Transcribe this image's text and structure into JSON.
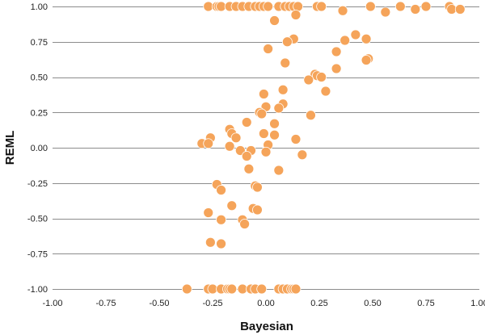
{
  "chart_data": {
    "type": "scatter",
    "xlabel": "Bayesian",
    "ylabel": "REML",
    "xlim": [
      -1.0,
      1.0
    ],
    "ylim": [
      -1.0,
      1.0
    ],
    "x_ticks": [
      "-1.00",
      "-0.75",
      "-0.50",
      "-0.25",
      "0.00",
      "0.25",
      "0.50",
      "0.75",
      "1.00"
    ],
    "y_ticks": [
      "1.00",
      "0.75",
      "0.50",
      "0.25",
      "0.00",
      "-0.25",
      "-0.50",
      "-0.75",
      "-1.00"
    ],
    "grid": "horizontal",
    "legend": "none",
    "marker_color": "#f5a45a",
    "points": [
      {
        "x": -0.27,
        "y": 1.0
      },
      {
        "x": -0.23,
        "y": 1.0
      },
      {
        "x": -0.22,
        "y": 1.0
      },
      {
        "x": -0.21,
        "y": 1.0
      },
      {
        "x": -0.17,
        "y": 1.0
      },
      {
        "x": -0.14,
        "y": 1.0
      },
      {
        "x": -0.11,
        "y": 1.0
      },
      {
        "x": -0.08,
        "y": 1.0
      },
      {
        "x": -0.05,
        "y": 1.0
      },
      {
        "x": -0.03,
        "y": 1.0
      },
      {
        "x": -0.01,
        "y": 1.0
      },
      {
        "x": 0.01,
        "y": 1.0
      },
      {
        "x": 0.06,
        "y": 1.0
      },
      {
        "x": 0.09,
        "y": 1.0
      },
      {
        "x": 0.11,
        "y": 1.0
      },
      {
        "x": 0.13,
        "y": 1.0
      },
      {
        "x": 0.15,
        "y": 1.0
      },
      {
        "x": 0.24,
        "y": 1.0
      },
      {
        "x": 0.26,
        "y": 1.0
      },
      {
        "x": 0.49,
        "y": 1.0
      },
      {
        "x": 0.63,
        "y": 1.0
      },
      {
        "x": 0.75,
        "y": 1.0
      },
      {
        "x": 0.86,
        "y": 1.0
      },
      {
        "x": 0.7,
        "y": 0.98
      },
      {
        "x": 0.87,
        "y": 0.98
      },
      {
        "x": 0.91,
        "y": 0.98
      },
      {
        "x": 0.36,
        "y": 0.97
      },
      {
        "x": 0.56,
        "y": 0.96
      },
      {
        "x": 0.14,
        "y": 0.94
      },
      {
        "x": 0.04,
        "y": 0.9
      },
      {
        "x": 0.42,
        "y": 0.8
      },
      {
        "x": 0.13,
        "y": 0.77
      },
      {
        "x": 0.47,
        "y": 0.77
      },
      {
        "x": 0.37,
        "y": 0.76
      },
      {
        "x": 0.1,
        "y": 0.75
      },
      {
        "x": 0.01,
        "y": 0.7
      },
      {
        "x": 0.33,
        "y": 0.68
      },
      {
        "x": 0.48,
        "y": 0.63
      },
      {
        "x": 0.47,
        "y": 0.62
      },
      {
        "x": 0.09,
        "y": 0.6
      },
      {
        "x": 0.33,
        "y": 0.56
      },
      {
        "x": 0.23,
        "y": 0.52
      },
      {
        "x": 0.24,
        "y": 0.51
      },
      {
        "x": 0.26,
        "y": 0.5
      },
      {
        "x": 0.2,
        "y": 0.48
      },
      {
        "x": 0.08,
        "y": 0.41
      },
      {
        "x": 0.28,
        "y": 0.4
      },
      {
        "x": -0.01,
        "y": 0.38
      },
      {
        "x": 0.08,
        "y": 0.31
      },
      {
        "x": 0.0,
        "y": 0.29
      },
      {
        "x": 0.06,
        "y": 0.28
      },
      {
        "x": -0.03,
        "y": 0.25
      },
      {
        "x": -0.02,
        "y": 0.24
      },
      {
        "x": 0.21,
        "y": 0.23
      },
      {
        "x": -0.09,
        "y": 0.18
      },
      {
        "x": 0.04,
        "y": 0.17
      },
      {
        "x": -0.17,
        "y": 0.13
      },
      {
        "x": -0.16,
        "y": 0.1
      },
      {
        "x": -0.01,
        "y": 0.1
      },
      {
        "x": 0.04,
        "y": 0.09
      },
      {
        "x": -0.26,
        "y": 0.07
      },
      {
        "x": -0.14,
        "y": 0.07
      },
      {
        "x": 0.14,
        "y": 0.06
      },
      {
        "x": -0.3,
        "y": 0.03
      },
      {
        "x": -0.27,
        "y": 0.03
      },
      {
        "x": 0.01,
        "y": 0.02
      },
      {
        "x": -0.17,
        "y": 0.01
      },
      {
        "x": -0.07,
        "y": -0.02
      },
      {
        "x": -0.12,
        "y": -0.02
      },
      {
        "x": 0.0,
        "y": -0.03
      },
      {
        "x": 0.17,
        "y": -0.05
      },
      {
        "x": -0.09,
        "y": -0.06
      },
      {
        "x": -0.08,
        "y": -0.15
      },
      {
        "x": 0.06,
        "y": -0.16
      },
      {
        "x": -0.23,
        "y": -0.26
      },
      {
        "x": -0.05,
        "y": -0.27
      },
      {
        "x": -0.04,
        "y": -0.28
      },
      {
        "x": -0.21,
        "y": -0.3
      },
      {
        "x": -0.16,
        "y": -0.41
      },
      {
        "x": -0.06,
        "y": -0.43
      },
      {
        "x": -0.04,
        "y": -0.44
      },
      {
        "x": -0.27,
        "y": -0.46
      },
      {
        "x": -0.11,
        "y": -0.51
      },
      {
        "x": -0.21,
        "y": -0.51
      },
      {
        "x": -0.1,
        "y": -0.54
      },
      {
        "x": -0.26,
        "y": -0.67
      },
      {
        "x": -0.21,
        "y": -0.68
      },
      {
        "x": -0.37,
        "y": -1.0
      },
      {
        "x": -0.27,
        "y": -1.0
      },
      {
        "x": -0.25,
        "y": -1.0
      },
      {
        "x": -0.21,
        "y": -1.0
      },
      {
        "x": -0.18,
        "y": -1.0
      },
      {
        "x": -0.17,
        "y": -1.0
      },
      {
        "x": -0.16,
        "y": -1.0
      },
      {
        "x": -0.11,
        "y": -1.0
      },
      {
        "x": -0.07,
        "y": -1.0
      },
      {
        "x": -0.05,
        "y": -1.0
      },
      {
        "x": -0.02,
        "y": -1.0
      },
      {
        "x": 0.06,
        "y": -1.0
      },
      {
        "x": 0.08,
        "y": -1.0
      },
      {
        "x": 0.1,
        "y": -1.0
      },
      {
        "x": 0.12,
        "y": -1.0
      },
      {
        "x": 0.13,
        "y": -1.0
      },
      {
        "x": 0.14,
        "y": -1.0
      }
    ]
  }
}
